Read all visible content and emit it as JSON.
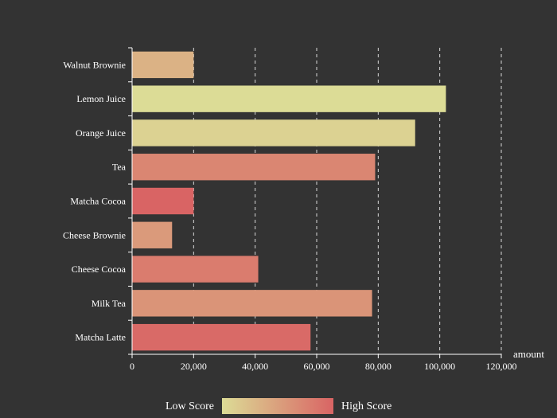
{
  "chart_data": {
    "type": "bar",
    "orientation": "horizontal",
    "categories": [
      "Walnut Brownie",
      "Lemon Juice",
      "Orange Juice",
      "Tea",
      "Matcha Cocoa",
      "Cheese Brownie",
      "Cheese Cocoa",
      "Milk Tea",
      "Matcha Latte"
    ],
    "values": [
      20000,
      102000,
      92000,
      79000,
      20000,
      13000,
      41000,
      78000,
      58000
    ],
    "scores": [
      0.35,
      0.0,
      0.08,
      0.72,
      1.0,
      0.55,
      0.8,
      0.6,
      0.95
    ],
    "xlabel": "amount",
    "xlim": [
      0,
      120000
    ],
    "x_ticks": [
      "0",
      "20,000",
      "40,000",
      "60,000",
      "80,000",
      "100,000",
      "120,000"
    ],
    "grid": "vertical dashed",
    "legend": {
      "low_label": "Low Score",
      "high_label": "High Score",
      "low_color": "#dcdc96",
      "high_color": "#d96464",
      "placement": "bottom"
    }
  }
}
